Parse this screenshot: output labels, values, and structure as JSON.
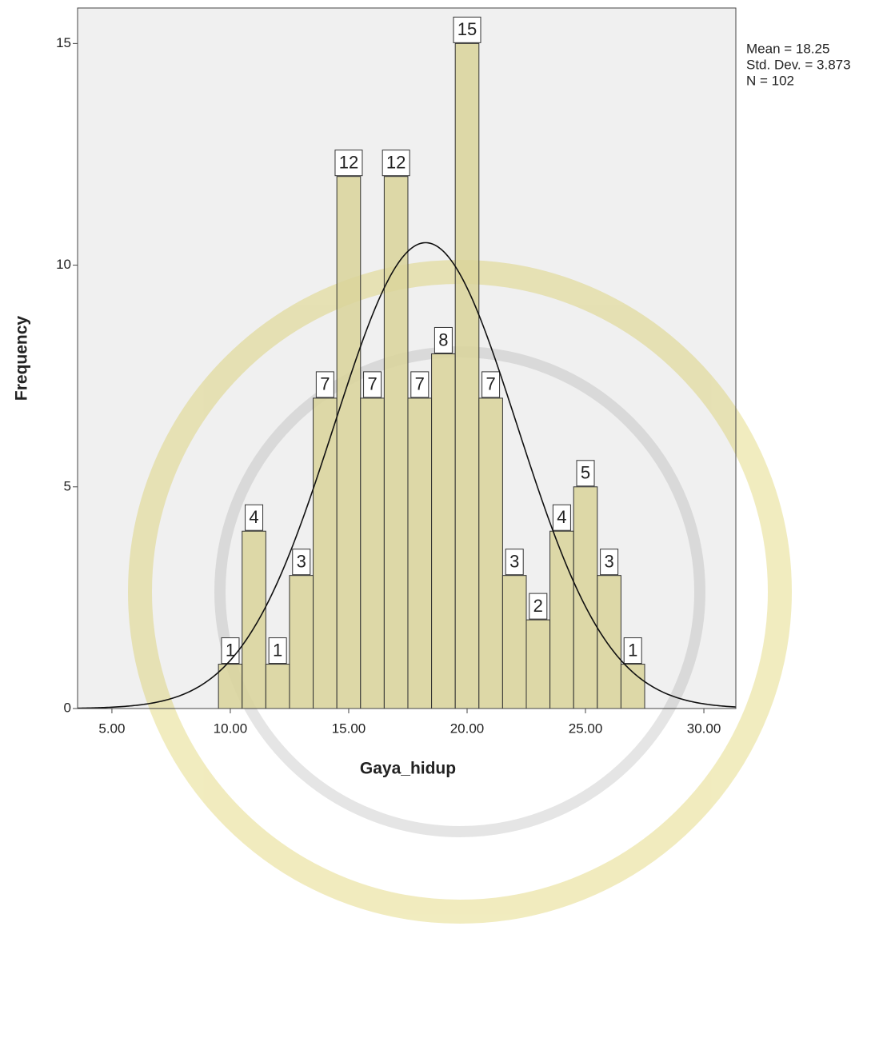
{
  "chart_data": {
    "type": "histogram",
    "x_label": "Gaya_hidup",
    "y_label": "Frequency",
    "bins": [
      9.5,
      10.5,
      11.5,
      12.5,
      13.5,
      14.5,
      15.5,
      16.5,
      17.5,
      18.5,
      19.5,
      20.5,
      21.5,
      22.5,
      23.5,
      24.5,
      25.5,
      26.5,
      27.5
    ],
    "values": [
      1,
      4,
      1,
      3,
      7,
      12,
      7,
      12,
      7,
      8,
      15,
      7,
      3,
      2,
      4,
      5,
      3,
      1
    ],
    "color": "#d9d49a",
    "xlim": [
      3.55,
      31.35
    ],
    "ylim": [
      0,
      15.8
    ],
    "xticks": [
      {
        "value": 5,
        "label": "5.00"
      },
      {
        "value": 10,
        "label": "10.00"
      },
      {
        "value": 15,
        "label": "15.00"
      },
      {
        "value": 20,
        "label": "20.00"
      },
      {
        "value": 25,
        "label": "25.00"
      },
      {
        "value": 30,
        "label": "30.00"
      }
    ],
    "yticks": [
      0,
      5,
      10,
      15
    ],
    "stats": {
      "mean": {
        "value": 18.25,
        "label": "Mean = 18.25"
      },
      "std_dev": {
        "value": 3.873,
        "label": "Std. Dev. = 3.873"
      },
      "n": {
        "value": 102,
        "label": "N = 102"
      }
    }
  }
}
